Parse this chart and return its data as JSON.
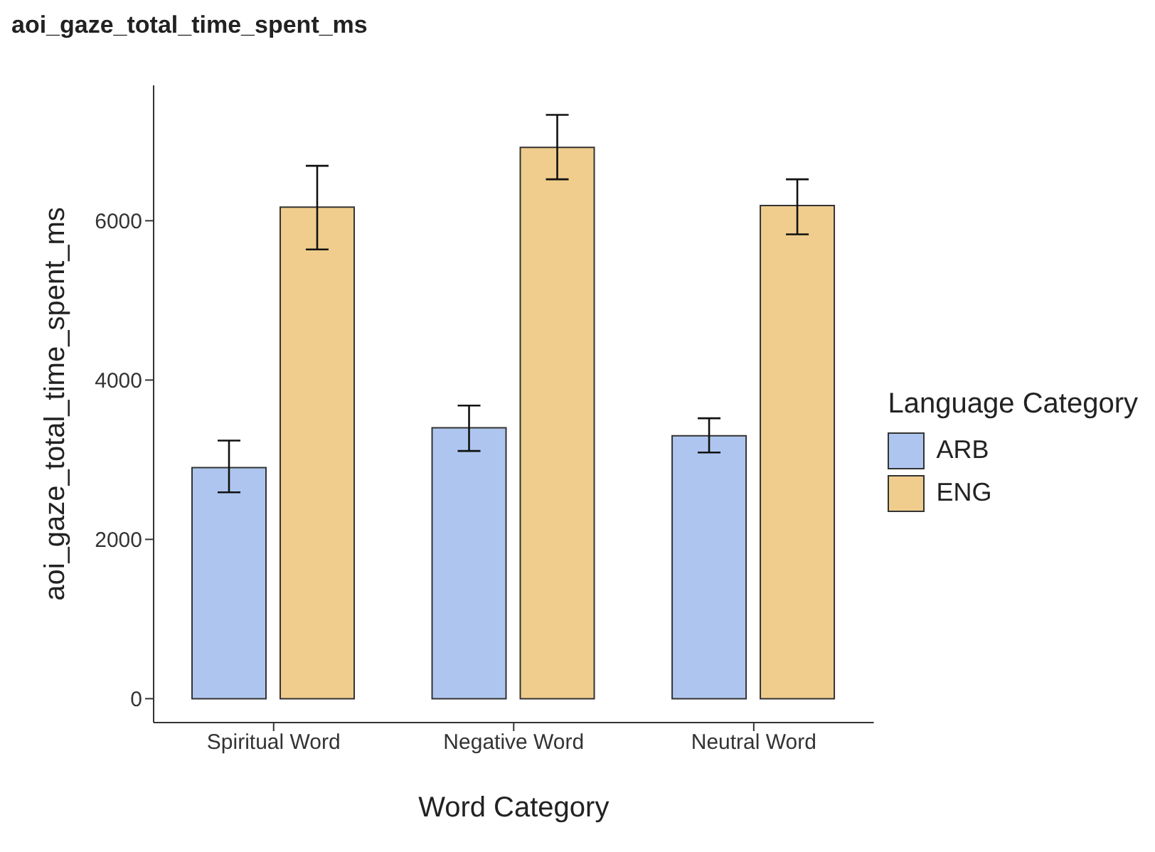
{
  "chart_data": {
    "type": "bar",
    "title": "aoi_gaze_total_time_spent_ms",
    "xlabel": "Word Category",
    "ylabel": "aoi_gaze_total_time_spent_ms",
    "legend_title": "Language Category",
    "categories": [
      "Spiritual Word",
      "Negative Word",
      "Neutral Word"
    ],
    "series": [
      {
        "name": "ARB",
        "color": "#aec6ef",
        "values": [
          2900,
          3400,
          3300
        ],
        "errors": [
          [
            2590,
            3240
          ],
          [
            3110,
            3680
          ],
          [
            3090,
            3520
          ]
        ]
      },
      {
        "name": "ENG",
        "color": "#f0cd8d",
        "values": [
          6170,
          6920,
          6190
        ],
        "errors": [
          [
            5640,
            6690
          ],
          [
            6520,
            7330
          ],
          [
            5830,
            6520
          ]
        ]
      }
    ],
    "ylim": [
      -300,
      7700
    ],
    "yticks": [
      0,
      2000,
      4000,
      6000
    ],
    "grid": false,
    "legend": "right"
  }
}
